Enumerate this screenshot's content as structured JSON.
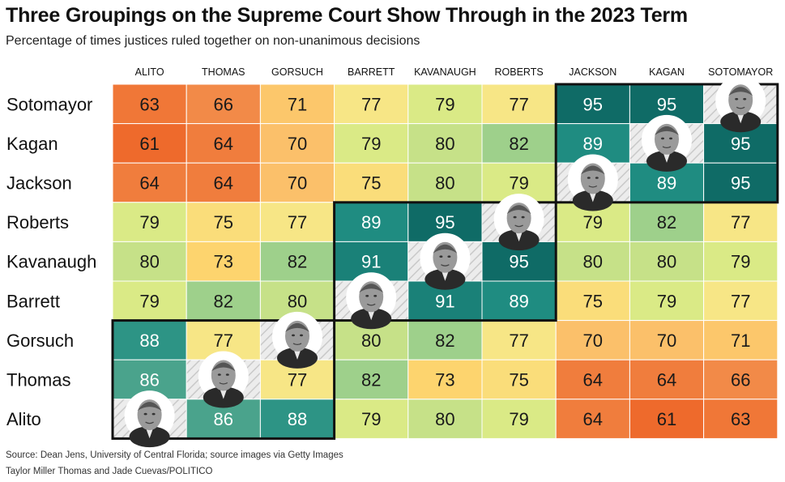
{
  "title": "Three Groupings on the Supreme Court Show Through in the 2023 Term",
  "subtitle": "Percentage of times justices ruled together on non-unanimous decisions",
  "source": "Source: Dean Jens, University of Central Florida; source images via Getty Images",
  "credit": "Taylor Miller Thomas and Jade Cuevas/POLITICO",
  "chart_data": {
    "type": "heatmap",
    "columns": [
      "ALITO",
      "THOMAS",
      "GORSUCH",
      "BARRETT",
      "KAVANAUGH",
      "ROBERTS",
      "JACKSON",
      "KAGAN",
      "SOTOMAYOR"
    ],
    "rows": [
      "Sotomayor",
      "Kagan",
      "Jackson",
      "Roberts",
      "Kavanaugh",
      "Barrett",
      "Gorsuch",
      "Thomas",
      "Alito"
    ],
    "values": [
      [
        63,
        66,
        71,
        77,
        79,
        77,
        95,
        95,
        null
      ],
      [
        61,
        64,
        70,
        79,
        80,
        82,
        89,
        null,
        95
      ],
      [
        64,
        64,
        70,
        75,
        80,
        79,
        null,
        89,
        95
      ],
      [
        79,
        75,
        77,
        89,
        95,
        null,
        79,
        82,
        77
      ],
      [
        80,
        73,
        82,
        91,
        null,
        95,
        80,
        80,
        79
      ],
      [
        79,
        82,
        80,
        null,
        91,
        89,
        75,
        79,
        77
      ],
      [
        88,
        77,
        null,
        80,
        82,
        77,
        70,
        70,
        71
      ],
      [
        86,
        null,
        77,
        82,
        73,
        75,
        64,
        64,
        66
      ],
      [
        null,
        86,
        88,
        79,
        80,
        79,
        64,
        61,
        63
      ]
    ],
    "groups": [
      {
        "rows": [
          "Sotomayor",
          "Kagan",
          "Jackson"
        ],
        "columns": [
          "JACKSON",
          "KAGAN",
          "SOTOMAYOR"
        ]
      },
      {
        "rows": [
          "Roberts",
          "Kavanaugh",
          "Barrett"
        ],
        "columns": [
          "BARRETT",
          "KAVANAUGH",
          "ROBERTS"
        ]
      },
      {
        "rows": [
          "Gorsuch",
          "Thomas",
          "Alito"
        ],
        "columns": [
          "ALITO",
          "THOMAS",
          "GORSUCH"
        ]
      }
    ],
    "color_scale": [
      {
        "value": 61,
        "color": "#ee6a2c"
      },
      {
        "value": 66,
        "color": "#f28a48"
      },
      {
        "value": 70,
        "color": "#fbc06a"
      },
      {
        "value": 73,
        "color": "#fdd46e"
      },
      {
        "value": 77,
        "color": "#f7e686"
      },
      {
        "value": 79,
        "color": "#daea86"
      },
      {
        "value": 82,
        "color": "#9ed08b"
      },
      {
        "value": 86,
        "color": "#4aa38c"
      },
      {
        "value": 89,
        "color": "#1f8c81"
      },
      {
        "value": 95,
        "color": "#0f6b66"
      }
    ],
    "diagonal": "justice photo",
    "legend": "none"
  }
}
